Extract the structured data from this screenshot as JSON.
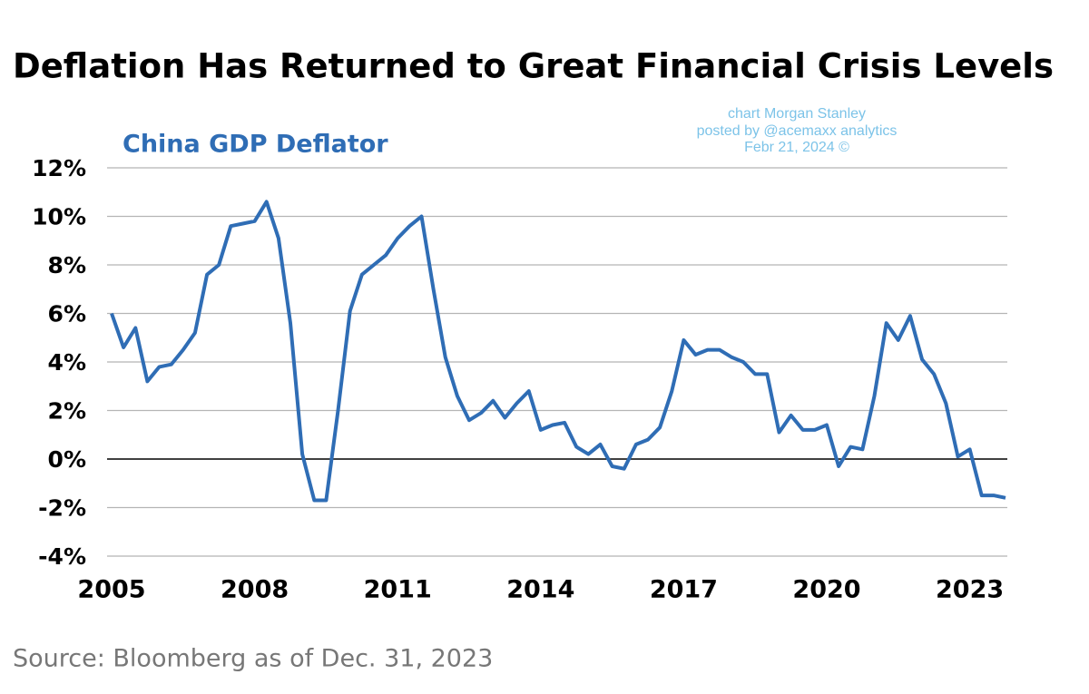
{
  "chart_data": {
    "type": "line",
    "title": "Deflation Has Returned to Great Financial Crisis Levels",
    "subtitle": "China GDP Deflator",
    "annotations": [
      "chart Morgan Stanley",
      "posted by @acemaxx analytics",
      "Febr 21, 2024 ©"
    ],
    "source": "Source: Bloomberg as of Dec. 31, 2023",
    "x": [
      2005,
      2005.25,
      2005.5,
      2005.75,
      2006,
      2006.25,
      2006.5,
      2006.75,
      2007,
      2007.25,
      2007.5,
      2007.75,
      2008,
      2008.25,
      2008.5,
      2008.75,
      2009,
      2009.25,
      2009.5,
      2009.75,
      2010,
      2010.25,
      2010.5,
      2010.75,
      2011,
      2011.25,
      2011.5,
      2011.75,
      2012,
      2012.25,
      2012.5,
      2012.75,
      2013,
      2013.25,
      2013.5,
      2013.75,
      2014,
      2014.25,
      2014.5,
      2014.75,
      2015,
      2015.25,
      2015.5,
      2015.75,
      2016,
      2016.25,
      2016.5,
      2016.75,
      2017,
      2017.25,
      2017.5,
      2017.75,
      2018,
      2018.25,
      2018.5,
      2018.75,
      2019,
      2019.25,
      2019.5,
      2019.75,
      2020,
      2020.25,
      2020.5,
      2020.75,
      2021,
      2021.25,
      2021.5,
      2021.75,
      2022,
      2022.25,
      2022.5,
      2022.75,
      2023,
      2023.25,
      2023.5,
      2023.75
    ],
    "series": [
      {
        "name": "China GDP Deflator",
        "color": "#2f6db5",
        "values": [
          6.0,
          4.6,
          5.4,
          3.2,
          3.8,
          3.9,
          4.5,
          5.2,
          7.6,
          8.0,
          9.6,
          9.7,
          9.8,
          10.6,
          9.1,
          5.6,
          0.2,
          -1.7,
          -1.7,
          2.0,
          6.1,
          7.6,
          8.0,
          8.4,
          9.1,
          9.6,
          10.0,
          7.0,
          4.2,
          2.6,
          1.6,
          1.9,
          2.4,
          1.7,
          2.3,
          2.8,
          1.2,
          1.4,
          1.5,
          0.5,
          0.2,
          0.6,
          -0.3,
          -0.4,
          0.6,
          0.8,
          1.3,
          2.8,
          4.9,
          4.3,
          4.5,
          4.5,
          4.2,
          4.0,
          3.5,
          3.5,
          1.1,
          1.8,
          1.2,
          1.2,
          1.4,
          -0.3,
          0.5,
          0.4,
          2.6,
          5.6,
          4.9,
          5.9,
          4.1,
          3.5,
          2.3,
          0.1,
          0.4,
          -1.5,
          -1.5,
          -1.6
        ]
      }
    ],
    "xlim": [
      2005,
      2023.75
    ],
    "xticks": [
      2005,
      2008,
      2011,
      2014,
      2017,
      2020,
      2023
    ],
    "ylim": [
      -4,
      12
    ],
    "yticks": [
      {
        "value": -4,
        "label": "-4%"
      },
      {
        "value": -2,
        "label": "-2%"
      },
      {
        "value": 0,
        "label": "0%"
      },
      {
        "value": 2,
        "label": "2%"
      },
      {
        "value": 4,
        "label": "4%"
      },
      {
        "value": 6,
        "label": "6%"
      },
      {
        "value": 8,
        "label": "8%"
      },
      {
        "value": 10,
        "label": "10%"
      },
      {
        "value": 12,
        "label": "12%"
      }
    ],
    "grid": true
  }
}
